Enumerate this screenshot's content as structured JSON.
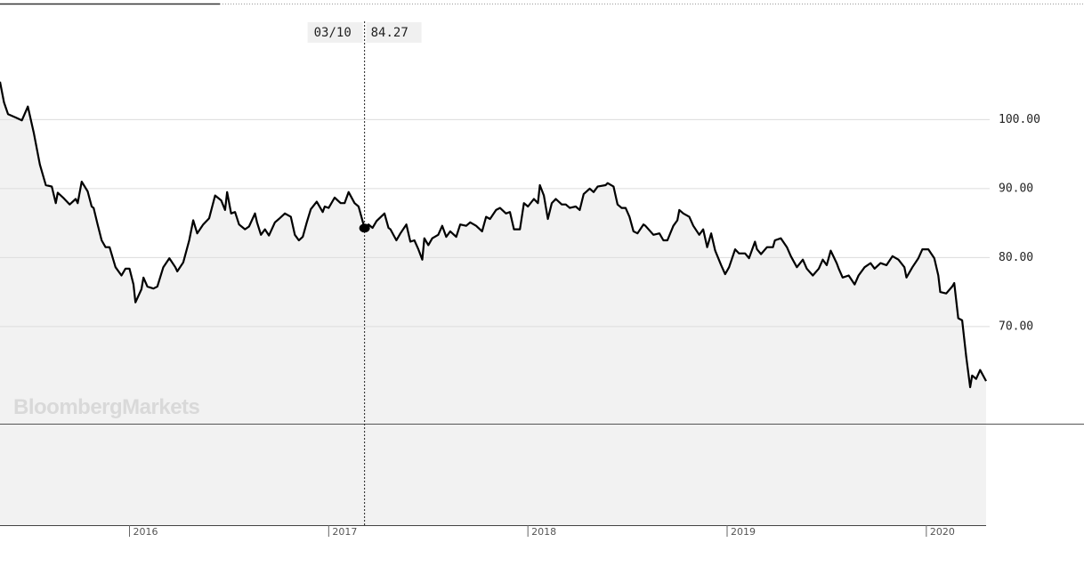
{
  "chart_data": {
    "type": "line",
    "watermark": "BloombergMarkets",
    "hover": {
      "label": "03/10",
      "value": 84.27,
      "x": 2017.18
    },
    "x": [
      2015.35,
      2015.37,
      2015.39,
      2015.43,
      2015.46,
      2015.49,
      2015.52,
      2015.55,
      2015.58,
      2015.61,
      2015.63,
      2015.64,
      2015.67,
      2015.7,
      2015.73,
      2015.74,
      2015.76,
      2015.79,
      2015.81,
      2015.82,
      2015.84,
      2015.86,
      2015.88,
      2015.9,
      2015.93,
      2015.96,
      2015.98,
      2016.0,
      2016.02,
      2016.03,
      2016.06,
      2016.07,
      2016.09,
      2016.12,
      2016.14,
      2016.17,
      2016.2,
      2016.23,
      2016.24,
      2016.27,
      2016.3,
      2016.32,
      2016.34,
      2016.37,
      2016.4,
      2016.43,
      2016.46,
      2016.48,
      2016.49,
      2016.51,
      2016.53,
      2016.55,
      2016.58,
      2016.6,
      2016.63,
      2016.64,
      2016.66,
      2016.68,
      2016.7,
      2016.73,
      2016.75,
      2016.78,
      2016.81,
      2016.83,
      2016.85,
      2016.87,
      2016.89,
      2016.91,
      2016.94,
      2016.97,
      2016.98,
      2017.0,
      2017.03,
      2017.06,
      2017.08,
      2017.1,
      2017.13,
      2017.15,
      2017.18,
      2017.2,
      2017.22,
      2017.24,
      2017.28,
      2017.3,
      2017.31,
      2017.34,
      2017.36,
      2017.39,
      2017.41,
      2017.43,
      2017.45,
      2017.47,
      2017.48,
      2017.5,
      2017.52,
      2017.55,
      2017.57,
      2017.59,
      2017.61,
      2017.64,
      2017.66,
      2017.69,
      2017.71,
      2017.74,
      2017.77,
      2017.79,
      2017.81,
      2017.84,
      2017.86,
      2017.89,
      2017.91,
      2017.93,
      2017.96,
      2017.98,
      2018.0,
      2018.03,
      2018.05,
      2018.06,
      2018.08,
      2018.1,
      2018.12,
      2018.14,
      2018.17,
      2018.19,
      2018.21,
      2018.24,
      2018.26,
      2018.28,
      2018.31,
      2018.33,
      2018.35,
      2018.39,
      2018.4,
      2018.43,
      2018.45,
      2018.47,
      2018.49,
      2018.51,
      2018.53,
      2018.55,
      2018.58,
      2018.59,
      2018.63,
      2018.66,
      2018.68,
      2018.7,
      2018.73,
      2018.75,
      2018.76,
      2018.78,
      2018.81,
      2018.83,
      2018.86,
      2018.88,
      2018.9,
      2018.92,
      2018.94,
      2018.97,
      2018.99,
      2019.01,
      2019.04,
      2019.06,
      2019.09,
      2019.11,
      2019.14,
      2019.15,
      2019.17,
      2019.2,
      2019.23,
      2019.24,
      2019.27,
      2019.3,
      2019.32,
      2019.35,
      2019.38,
      2019.4,
      2019.43,
      2019.46,
      2019.48,
      2019.5,
      2019.52,
      2019.55,
      2019.56,
      2019.58,
      2019.61,
      2019.64,
      2019.66,
      2019.69,
      2019.72,
      2019.74,
      2019.77,
      2019.8,
      2019.83,
      2019.86,
      2019.89,
      2019.9,
      2019.93,
      2019.96,
      2019.98,
      2020.01,
      2020.04,
      2020.06,
      2020.07,
      2020.1,
      2020.13,
      2020.14,
      2020.16,
      2020.18,
      2020.2,
      2020.22,
      2020.23,
      2020.25,
      2020.27,
      2020.3
    ],
    "series": [
      {
        "color": "#000000",
        "values": [
          105.5,
          102.5,
          100.8,
          100.3,
          99.9,
          101.9,
          98,
          93.5,
          90.5,
          90.3,
          87.9,
          89.4,
          88.6,
          87.7,
          88.5,
          87.9,
          91,
          89.6,
          87.4,
          87.2,
          84.8,
          82.5,
          81.5,
          81.5,
          78.6,
          77.4,
          78.4,
          78.4,
          76.1,
          73.5,
          75.4,
          77.1,
          75.8,
          75.5,
          75.8,
          78.6,
          79.9,
          78.6,
          78,
          79.3,
          82.5,
          85.4,
          83.5,
          84.8,
          85.7,
          89,
          88.3,
          86.9,
          89.5,
          86.4,
          86.6,
          84.8,
          84.1,
          84.5,
          86.4,
          85.1,
          83.3,
          84.1,
          83.2,
          85.1,
          85.6,
          86.4,
          85.9,
          83.3,
          82.5,
          83,
          85.1,
          87,
          88.1,
          86.6,
          87.4,
          87.2,
          88.7,
          87.9,
          87.9,
          89.5,
          87.9,
          87.4,
          84.27,
          84.8,
          84.3,
          85.3,
          86.4,
          84.3,
          84.1,
          82.5,
          83.5,
          84.8,
          82.3,
          82.5,
          81.2,
          79.7,
          82.8,
          81.8,
          82.8,
          83.3,
          84.6,
          83,
          83.8,
          83,
          84.8,
          84.6,
          85.1,
          84.6,
          83.8,
          85.9,
          85.6,
          86.9,
          87.2,
          86.4,
          86.6,
          84.1,
          84.1,
          87.9,
          87.4,
          88.5,
          87.9,
          90.5,
          89,
          85.6,
          87.9,
          88.5,
          87.7,
          87.7,
          87.2,
          87.4,
          86.9,
          89.2,
          90,
          89.5,
          90.3,
          90.5,
          90.8,
          90.3,
          87.7,
          87.2,
          87.2,
          85.9,
          83.8,
          83.5,
          84.8,
          84.6,
          83.3,
          83.5,
          82.5,
          82.5,
          84.6,
          85.4,
          86.9,
          86.4,
          85.9,
          84.6,
          83.3,
          84.1,
          81.5,
          83.5,
          81,
          78.9,
          77.6,
          78.6,
          81.2,
          80.6,
          80.6,
          79.9,
          82.3,
          81.2,
          80.5,
          81.5,
          81.5,
          82.5,
          82.8,
          81.5,
          80.2,
          78.6,
          79.7,
          78.4,
          77.4,
          78.4,
          79.7,
          78.9,
          81,
          79.2,
          78.4,
          77.1,
          77.4,
          76.1,
          77.4,
          78.6,
          79.2,
          78.4,
          79.2,
          78.9,
          80.2,
          79.7,
          78.6,
          77.1,
          78.6,
          79.9,
          81.2,
          81.2,
          79.9,
          77.4,
          75,
          74.8,
          75.8,
          76.3,
          71.2,
          70.9,
          65.7,
          61.2,
          62.9,
          62.4,
          63.7,
          62.1
        ]
      }
    ],
    "xlim": [
      2015.35,
      2020.3
    ],
    "xticks": [
      2016,
      2017,
      2018,
      2019,
      2020
    ],
    "ylim": [
      41.2,
      116.7
    ],
    "yticks": [
      {
        "value": 70,
        "label": "70.00"
      },
      {
        "value": 80,
        "label": "80.00"
      },
      {
        "value": 90,
        "label": "90.00"
      },
      {
        "value": 100,
        "label": "100.00"
      }
    ],
    "grid": true
  }
}
